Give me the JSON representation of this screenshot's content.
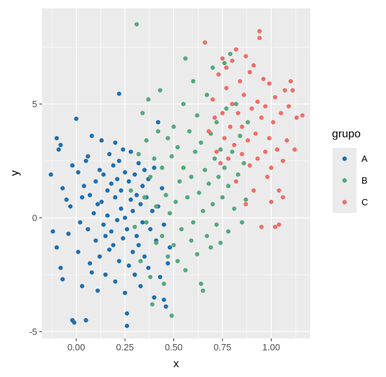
{
  "chart_data": {
    "type": "scatter",
    "xlabel": "x",
    "ylabel": "y",
    "xlim": [
      -0.175,
      1.2
    ],
    "ylim": [
      -5.3,
      9.2
    ],
    "x_ticks": [
      0,
      0.25,
      0.5,
      0.75,
      1
    ],
    "x_tick_labels": [
      "0.00",
      "0.25",
      "0.50",
      "0.75",
      "1.00"
    ],
    "y_ticks": [
      -5,
      0,
      5
    ],
    "y_tick_labels": [
      "-5",
      "0",
      "5"
    ],
    "grid": true,
    "legend": {
      "title": "grupo",
      "placement": "right"
    },
    "colors": {
      "A": "#1f6fb0",
      "B": "#55a87e",
      "C": "#ee6e68",
      "panel": "#ebebeb",
      "grid": "#ffffff"
    },
    "series": [
      {
        "name": "A",
        "points": [
          [
            -0.13,
            1.9
          ],
          [
            -0.12,
            -0.6
          ],
          [
            -0.1,
            3.5
          ],
          [
            -0.09,
            3.0
          ],
          [
            -0.08,
            3.2
          ],
          [
            -0.07,
            1.3
          ],
          [
            -0.1,
            -1.3
          ],
          [
            -0.08,
            -2.2
          ],
          [
            -0.07,
            -2.7
          ],
          [
            -0.05,
            0.8
          ],
          [
            -0.04,
            -0.7
          ],
          [
            -0.03,
            0.5
          ],
          [
            -0.02,
            2.3
          ],
          [
            -0.02,
            -4.5
          ],
          [
            -0.01,
            -4.6
          ],
          [
            0.0,
            4.35
          ],
          [
            0.01,
            -1.5
          ],
          [
            0.01,
            2.0
          ],
          [
            0.02,
            -0.2
          ],
          [
            0.03,
            0.9
          ],
          [
            0.03,
            -3.0
          ],
          [
            0.04,
            1.4
          ],
          [
            0.05,
            2.5
          ],
          [
            0.05,
            -4.5
          ],
          [
            0.06,
            2.7
          ],
          [
            0.06,
            -0.5
          ],
          [
            0.07,
            -2.0
          ],
          [
            0.07,
            1.0
          ],
          [
            0.08,
            -2.4
          ],
          [
            0.08,
            3.6
          ],
          [
            0.09,
            0.2
          ],
          [
            0.1,
            1.6
          ],
          [
            0.1,
            -1.0
          ],
          [
            0.11,
            0.6
          ],
          [
            0.11,
            -3.2
          ],
          [
            0.12,
            2.1
          ],
          [
            0.12,
            -1.7
          ],
          [
            0.13,
            0.7
          ],
          [
            0.13,
            3.4
          ],
          [
            0.14,
            -0.3
          ],
          [
            0.14,
            1.9
          ],
          [
            0.15,
            -0.8
          ],
          [
            0.15,
            -2.5
          ],
          [
            0.16,
            1.2
          ],
          [
            0.16,
            0.1
          ],
          [
            0.17,
            2.8
          ],
          [
            0.17,
            -1.4
          ],
          [
            0.18,
            -0.6
          ],
          [
            0.18,
            1.5
          ],
          [
            0.19,
            2.3
          ],
          [
            0.19,
            -1.2
          ],
          [
            0.2,
            0.9
          ],
          [
            0.2,
            3.3
          ],
          [
            0.2,
            -2.8
          ],
          [
            0.21,
            1.7
          ],
          [
            0.21,
            -0.1
          ],
          [
            0.22,
            5.45
          ],
          [
            0.22,
            2.5
          ],
          [
            0.22,
            -1.9
          ],
          [
            0.23,
            0.4
          ],
          [
            0.23,
            1.2
          ],
          [
            0.24,
            -0.9
          ],
          [
            0.24,
            3.0
          ],
          [
            0.25,
            -3.3
          ],
          [
            0.25,
            0.0
          ],
          [
            0.25,
            2.0
          ],
          [
            0.26,
            -4.75
          ],
          [
            0.26,
            -4.2
          ],
          [
            0.26,
            -0.5
          ],
          [
            0.27,
            1.6
          ],
          [
            0.27,
            -2.1
          ],
          [
            0.28,
            0.8
          ],
          [
            0.28,
            2.9
          ],
          [
            0.29,
            -1.5
          ],
          [
            0.29,
            0.3
          ],
          [
            0.3,
            1.9
          ],
          [
            0.3,
            -2.5
          ],
          [
            0.31,
            -0.8
          ],
          [
            0.31,
            1.0
          ],
          [
            0.32,
            2.4
          ],
          [
            0.32,
            -1.2
          ],
          [
            0.33,
            0.6
          ],
          [
            0.33,
            -3.0
          ],
          [
            0.34,
            1.4
          ],
          [
            0.34,
            -0.2
          ],
          [
            0.35,
            2.1
          ],
          [
            0.35,
            -1.7
          ],
          [
            0.36,
            0.9
          ],
          [
            0.37,
            -2.2
          ],
          [
            0.37,
            1.7
          ],
          [
            0.38,
            -0.5
          ],
          [
            0.39,
            0.3
          ],
          [
            0.4,
            -3.5
          ],
          [
            0.4,
            2.2
          ],
          [
            0.41,
            -1.0
          ],
          [
            0.42,
            4.2
          ],
          [
            0.42,
            0.5
          ],
          [
            0.43,
            -2.6
          ],
          [
            0.44,
            1.3
          ],
          [
            0.45,
            -0.3
          ],
          [
            0.45,
            -3.6
          ],
          [
            0.46,
            -3.9
          ],
          [
            0.47,
            -2.0
          ],
          [
            0.48,
            -1.3
          ]
        ]
      },
      {
        "name": "B",
        "points": [
          [
            0.28,
            1.2
          ],
          [
            0.3,
            -0.4
          ],
          [
            0.31,
            8.5
          ],
          [
            0.32,
            2.8
          ],
          [
            0.33,
            -1.9
          ],
          [
            0.34,
            4.6
          ],
          [
            0.35,
            0.9
          ],
          [
            0.36,
            -0.2
          ],
          [
            0.36,
            3.4
          ],
          [
            0.37,
            5.2
          ],
          [
            0.38,
            -2.6
          ],
          [
            0.38,
            1.8
          ],
          [
            0.39,
            -3.8
          ],
          [
            0.4,
            2.6
          ],
          [
            0.41,
            -1.1
          ],
          [
            0.41,
            0.5
          ],
          [
            0.42,
            3.8
          ],
          [
            0.43,
            5.6
          ],
          [
            0.44,
            -0.8
          ],
          [
            0.44,
            2.2
          ],
          [
            0.45,
            -2.9
          ],
          [
            0.46,
            1.0
          ],
          [
            0.47,
            3.5
          ],
          [
            0.47,
            -1.7
          ],
          [
            0.48,
            0.2
          ],
          [
            0.49,
            -4.3
          ],
          [
            0.49,
            2.7
          ],
          [
            0.5,
            -1.2
          ],
          [
            0.5,
            4.0
          ],
          [
            0.51,
            0.7
          ],
          [
            0.52,
            -1.9
          ],
          [
            0.52,
            3.1
          ],
          [
            0.53,
            1.6
          ],
          [
            0.54,
            -0.5
          ],
          [
            0.55,
            5.0
          ],
          [
            0.55,
            2.2
          ],
          [
            0.56,
            7.0
          ],
          [
            0.56,
            -2.3
          ],
          [
            0.57,
            0.9
          ],
          [
            0.58,
            3.8
          ],
          [
            0.59,
            -1.0
          ],
          [
            0.59,
            1.8
          ],
          [
            0.6,
            6.0
          ],
          [
            0.6,
            -0.2
          ],
          [
            0.61,
            2.9
          ],
          [
            0.62,
            -1.6
          ],
          [
            0.62,
            4.5
          ],
          [
            0.63,
            1.1
          ],
          [
            0.64,
            -2.9
          ],
          [
            0.64,
            3.3
          ],
          [
            0.65,
            0.3
          ],
          [
            0.65,
            -3.2
          ],
          [
            0.66,
            2.1
          ],
          [
            0.67,
            5.4
          ],
          [
            0.67,
            -0.8
          ],
          [
            0.68,
            1.5
          ],
          [
            0.69,
            3.7
          ],
          [
            0.69,
            -1.3
          ],
          [
            0.7,
            6.6
          ],
          [
            0.7,
            0.6
          ],
          [
            0.71,
            2.6
          ],
          [
            0.72,
            -0.3
          ],
          [
            0.72,
            4.2
          ],
          [
            0.73,
            1.8
          ],
          [
            0.74,
            -1.1
          ],
          [
            0.74,
            3.0
          ],
          [
            0.75,
            0.9
          ],
          [
            0.76,
            6.8
          ],
          [
            0.76,
            2.2
          ],
          [
            0.77,
            4.8
          ],
          [
            0.78,
            -0.6
          ],
          [
            0.78,
            1.4
          ],
          [
            0.79,
            7.2
          ],
          [
            0.8,
            2.9
          ],
          [
            0.81,
            0.4
          ],
          [
            0.82,
            5.0
          ],
          [
            0.83,
            1.9
          ],
          [
            0.84,
            3.6
          ],
          [
            0.85,
            -0.2
          ],
          [
            0.86,
            2.4
          ],
          [
            0.87,
            0.8
          ],
          [
            0.88,
            4.2
          ]
        ]
      },
      {
        "name": "C",
        "points": [
          [
            0.66,
            7.7
          ],
          [
            0.68,
            3.8
          ],
          [
            0.7,
            5.2
          ],
          [
            0.71,
            4.4
          ],
          [
            0.72,
            2.9
          ],
          [
            0.73,
            6.3
          ],
          [
            0.74,
            2.4
          ],
          [
            0.75,
            7.0
          ],
          [
            0.75,
            4.6
          ],
          [
            0.76,
            3.5
          ],
          [
            0.77,
            5.7
          ],
          [
            0.77,
            6.6
          ],
          [
            0.78,
            2.6
          ],
          [
            0.79,
            4.0
          ],
          [
            0.8,
            6.9
          ],
          [
            0.8,
            5.0
          ],
          [
            0.81,
            3.2
          ],
          [
            0.82,
            7.4
          ],
          [
            0.82,
            1.6
          ],
          [
            0.83,
            4.6
          ],
          [
            0.84,
            6.0
          ],
          [
            0.85,
            2.8
          ],
          [
            0.85,
            4.0
          ],
          [
            0.86,
            5.4
          ],
          [
            0.87,
            0.6
          ],
          [
            0.87,
            7.1
          ],
          [
            0.88,
            3.4
          ],
          [
            0.89,
            6.4
          ],
          [
            0.89,
            2.3
          ],
          [
            0.9,
            4.8
          ],
          [
            0.91,
            1.2
          ],
          [
            0.91,
            6.7
          ],
          [
            0.92,
            3.7
          ],
          [
            0.93,
            5.1
          ],
          [
            0.93,
            2.6
          ],
          [
            0.94,
            7.9
          ],
          [
            0.94,
            8.2
          ],
          [
            0.95,
            4.4
          ],
          [
            0.95,
            -0.4
          ],
          [
            0.96,
            6.1
          ],
          [
            0.97,
            2.9
          ],
          [
            0.97,
            4.9
          ],
          [
            0.98,
            1.8
          ],
          [
            0.99,
            3.5
          ],
          [
            0.99,
            5.9
          ],
          [
            1.0,
            2.2
          ],
          [
            1.0,
            0.7
          ],
          [
            1.01,
            4.2
          ],
          [
            1.02,
            -0.4
          ],
          [
            1.02,
            5.3
          ],
          [
            1.03,
            3.0
          ],
          [
            1.04,
            -0.3
          ],
          [
            1.04,
            1.2
          ],
          [
            1.05,
            4.6
          ],
          [
            1.06,
            2.5
          ],
          [
            1.06,
            0.9
          ],
          [
            1.07,
            5.6
          ],
          [
            1.08,
            3.4
          ],
          [
            1.09,
            4.9
          ],
          [
            1.1,
            6.0
          ],
          [
            1.11,
            5.6
          ],
          [
            1.12,
            3.0
          ],
          [
            1.13,
            4.4
          ],
          [
            1.16,
            4.5
          ]
        ]
      }
    ]
  }
}
